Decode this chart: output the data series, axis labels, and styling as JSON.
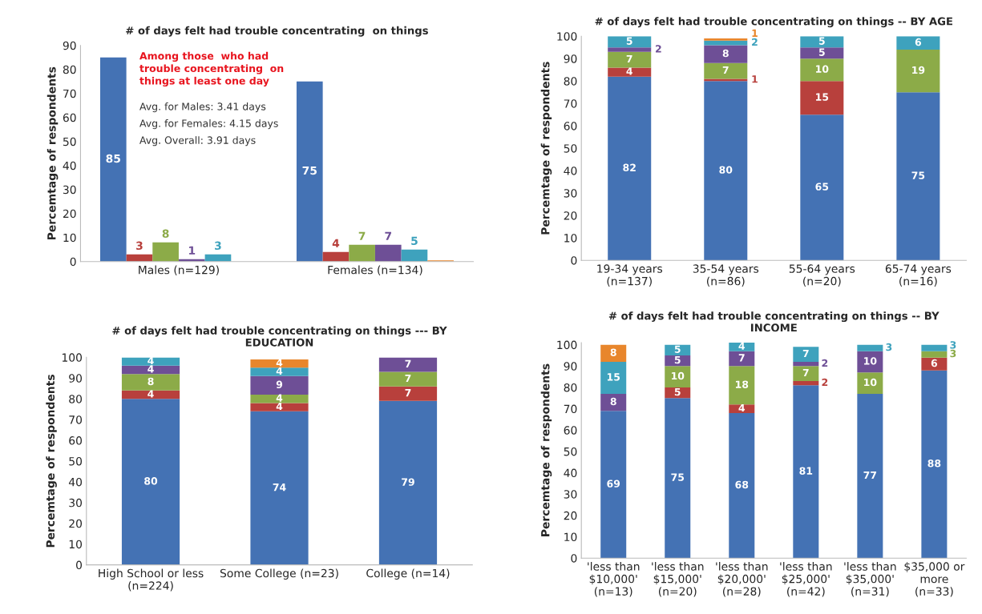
{
  "chart_data": [
    {
      "type": "bar",
      "title": "# of days felt had trouble concentrating  on things",
      "ylabel": "Percemtage of respondents",
      "categories": [
        "Males (n=129)",
        "Females (n=134)"
      ],
      "ylim": [
        0,
        90
      ],
      "yticks": [
        0,
        10,
        20,
        30,
        40,
        50,
        60,
        70,
        80,
        90
      ],
      "annotations": [
        "Among those  who had\ntrouble concentrating  on\nthings at least one day",
        "Avg. for Males: 3.41 days",
        "Avg. for Females: 4.15 days",
        "Avg. Overall: 3.91 days"
      ],
      "series": [
        {
          "color": "#4472b4",
          "values": [
            85,
            75
          ],
          "value_labels": [
            "85",
            "75"
          ]
        },
        {
          "color": "#b8403c",
          "values": [
            3,
            4
          ],
          "value_labels": [
            "3",
            "4"
          ]
        },
        {
          "color": "#8cab48",
          "values": [
            8,
            7
          ],
          "value_labels": [
            "8",
            "7"
          ]
        },
        {
          "color": "#6e4f96",
          "values": [
            1,
            7
          ],
          "value_labels": [
            "1",
            "7"
          ]
        },
        {
          "color": "#3ea2bd",
          "values": [
            3,
            5
          ],
          "value_labels": [
            "3",
            "5"
          ]
        },
        {
          "color": "#e8862c",
          "values": [
            null,
            0.5
          ],
          "value_labels": [
            null,
            null
          ]
        }
      ]
    },
    {
      "type": "bar",
      "stacked": true,
      "data_labels": true,
      "title": "# of days felt had trouble concentrating on things -- BY AGE",
      "ylabel": "Percemtage of respondents",
      "categories": [
        "19-34 years\n(n=137)",
        "35-54 years\n(n=86)",
        "55-64 years\n(n=20)",
        "65-74 years\n(n=16)"
      ],
      "ylim": [
        0,
        100
      ],
      "yticks": [
        0,
        10,
        20,
        30,
        40,
        50,
        60,
        70,
        80,
        90,
        100
      ],
      "series": [
        {
          "color": "#4472b4",
          "values": [
            82,
            80,
            65,
            75
          ]
        },
        {
          "color": "#b8403c",
          "values": [
            4,
            1,
            15,
            null
          ]
        },
        {
          "color": "#8cab48",
          "values": [
            7,
            7,
            10,
            19
          ]
        },
        {
          "color": "#6e4f96",
          "values": [
            2,
            8,
            5,
            null
          ]
        },
        {
          "color": "#3ea2bd",
          "values": [
            5,
            2,
            5,
            6
          ]
        },
        {
          "color": "#e8862c",
          "values": [
            null,
            1,
            null,
            null
          ]
        }
      ]
    },
    {
      "type": "bar",
      "stacked": true,
      "data_labels": true,
      "title": "# of days felt had trouble concentrating on things --- BY\nEDUCATION",
      "ylabel": "Percemtage of respondents",
      "categories": [
        "High School or less\n(n=224)",
        "Some College (n=23)",
        "College (n=14)"
      ],
      "ylim": [
        0,
        100
      ],
      "yticks": [
        0,
        10,
        20,
        30,
        40,
        50,
        60,
        70,
        80,
        90,
        100
      ],
      "series": [
        {
          "color": "#4472b4",
          "values": [
            80,
            74,
            79
          ]
        },
        {
          "color": "#b8403c",
          "values": [
            4,
            4,
            7
          ]
        },
        {
          "color": "#8cab48",
          "values": [
            8,
            4,
            7
          ]
        },
        {
          "color": "#6e4f96",
          "values": [
            4,
            9,
            7
          ]
        },
        {
          "color": "#3ea2bd",
          "values": [
            4,
            4,
            null
          ]
        },
        {
          "color": "#e8862c",
          "values": [
            null,
            4,
            null
          ]
        }
      ]
    },
    {
      "type": "bar",
      "stacked": true,
      "data_labels": true,
      "title": "# of days felt had trouble concentrating on things -- BY\nINCOME",
      "ylabel": "Percemtage of respondents",
      "categories": [
        "'less than\n$10,000'\n(n=13)",
        "'less than\n$15,000'\n(n=20)",
        "'less than\n$20,000'\n(n=28)",
        "'less than\n$25,000'\n(n=42)",
        "'less than\n$35,000'\n(n=31)",
        "$35,000 or\nmore\n(n=33)"
      ],
      "ylim": [
        0,
        101
      ],
      "yticks": [
        0,
        10,
        20,
        30,
        40,
        50,
        60,
        70,
        80,
        90,
        100
      ],
      "series": [
        {
          "color": "#4472b4",
          "values": [
            69,
            75,
            68,
            81,
            77,
            88
          ]
        },
        {
          "color": "#b8403c",
          "values": [
            null,
            5,
            4,
            2,
            null,
            6
          ]
        },
        {
          "color": "#8cab48",
          "values": [
            null,
            10,
            18,
            7,
            10,
            3
          ]
        },
        {
          "color": "#6e4f96",
          "values": [
            8,
            5,
            7,
            2,
            10,
            null
          ]
        },
        {
          "color": "#3ea2bd",
          "values": [
            15,
            5,
            4,
            7,
            3,
            3
          ]
        },
        {
          "color": "#e8862c",
          "values": [
            8,
            null,
            null,
            null,
            null,
            null
          ]
        }
      ]
    }
  ]
}
